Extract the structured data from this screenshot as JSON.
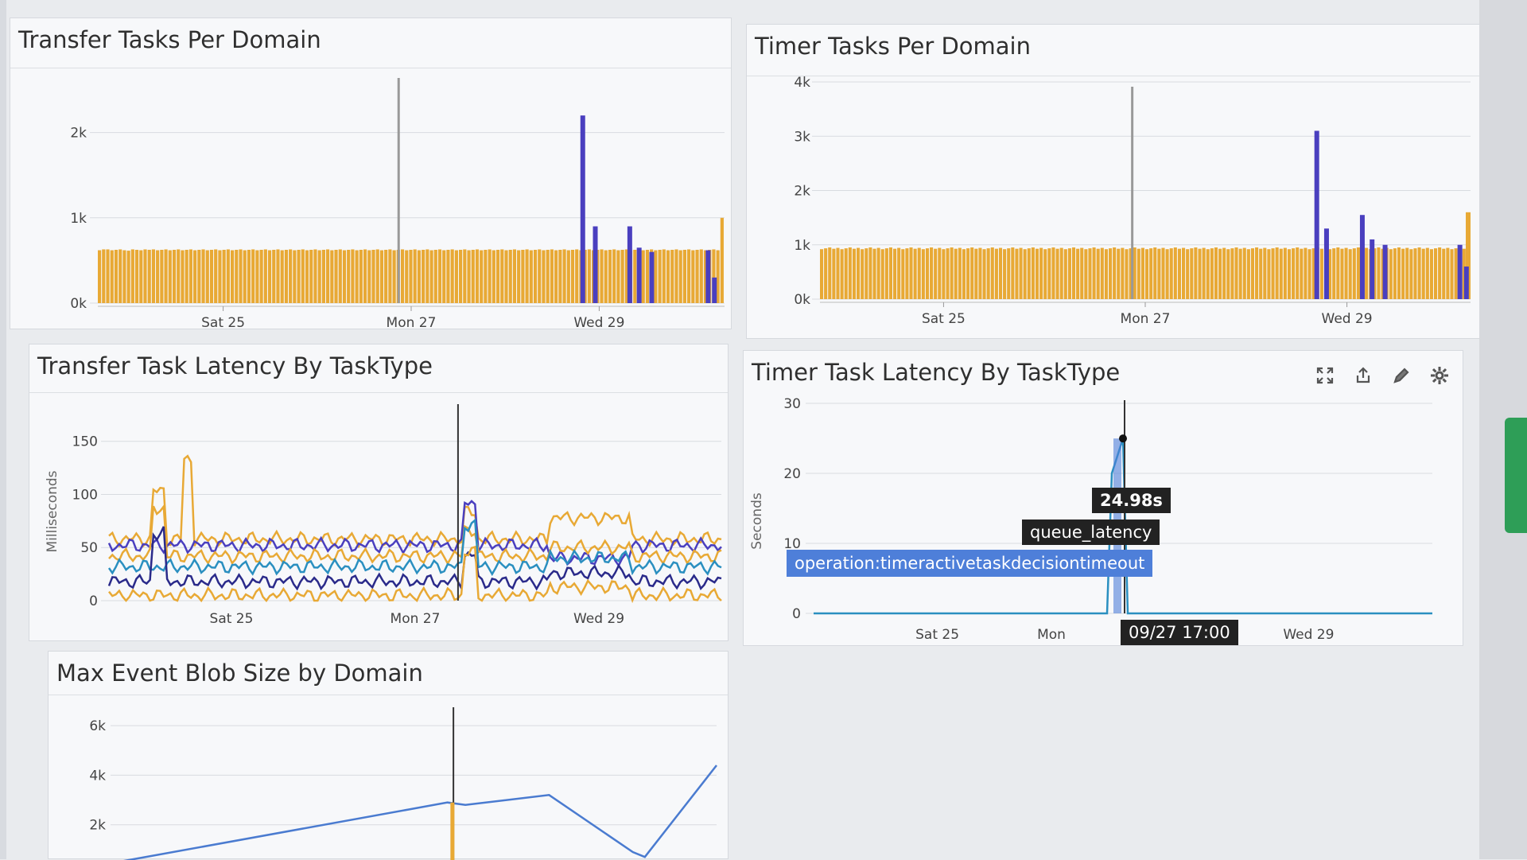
{
  "panels": {
    "transfer_tasks": {
      "title": "Transfer Tasks Per Domain"
    },
    "timer_tasks": {
      "title": "Timer Tasks Per Domain"
    },
    "transfer_latency": {
      "title": "Transfer Task Latency By TaskType",
      "ylabel": "Milliseconds"
    },
    "timer_latency": {
      "title": "Timer Task Latency By TaskType",
      "ylabel": "Seconds"
    },
    "blob_size": {
      "title": "Max Event Blob Size by Domain"
    }
  },
  "tooltip": {
    "value": "24.98s",
    "metric": "queue_latency",
    "operation": "operation:timeractivetaskdecisiontimeout",
    "time": "09/27 17:00"
  },
  "toolbar": {
    "icons": [
      "expand-icon",
      "share-icon",
      "edit-icon",
      "gear-icon"
    ]
  },
  "colors": {
    "orange": "#e8a935",
    "blue": "#4a3fbf",
    "teal": "#2a8fc0",
    "navy": "#2a2a8a",
    "tooltip_blue": "#4e7fd9"
  },
  "chart_data": [
    {
      "type": "bar",
      "title": "Transfer Tasks Per Domain",
      "x_ticks": [
        "Sat 25",
        "Mon 27",
        "Wed 29"
      ],
      "y_ticks": [
        "0k",
        "1k",
        "2k"
      ],
      "ylim": [
        0,
        2500
      ],
      "series": [
        {
          "values": [
            620,
            630,
            630,
            620,
            625,
            630,
            620,
            615,
            630,
            625,
            620,
            630,
            625,
            630,
            620,
            625,
            630,
            620,
            625,
            630,
            620,
            625,
            630,
            620,
            625,
            630,
            620,
            625,
            630,
            620,
            625,
            630,
            620,
            625,
            630,
            620,
            625,
            630,
            620,
            625,
            630,
            620,
            625,
            630,
            620,
            625,
            630,
            620,
            625,
            630,
            620,
            625,
            630,
            620,
            625,
            630,
            620,
            625,
            630,
            620,
            625,
            630,
            620,
            625,
            630,
            620,
            625,
            630,
            620,
            625,
            630,
            620,
            625,
            630,
            620,
            625,
            630,
            620,
            625,
            630,
            620,
            625,
            630,
            620,
            625,
            630,
            620,
            625,
            630,
            620,
            625,
            630,
            620,
            625,
            630,
            620,
            625,
            630,
            620,
            625,
            630,
            620,
            625,
            630,
            620,
            625,
            630,
            620,
            625,
            630,
            620,
            625,
            630,
            620,
            625,
            630,
            620,
            625,
            630,
            620,
            625,
            630,
            620,
            625,
            630,
            620,
            625,
            630,
            620,
            625,
            630,
            620,
            625,
            630,
            620,
            625,
            630,
            620,
            625,
            630,
            620,
            625,
            630,
            620,
            625,
            630,
            620,
            625,
            630,
            620,
            1000
          ]
        },
        {
          "spikes": [
            [
              0.77,
              2200
            ],
            [
              0.79,
              900
            ],
            [
              0.845,
              900
            ],
            [
              0.86,
              650
            ],
            [
              0.88,
              600
            ],
            [
              0.97,
              620
            ],
            [
              0.98,
              300
            ]
          ]
        }
      ]
    },
    {
      "type": "bar",
      "title": "Timer Tasks Per Domain",
      "x_ticks": [
        "Sat 25",
        "Mon 27",
        "Wed 29"
      ],
      "y_ticks": [
        "0k",
        "1k",
        "2k",
        "3k",
        "4k"
      ],
      "ylim": [
        0,
        4000
      ],
      "spikes": [
        [
          0.76,
          3100
        ],
        [
          0.775,
          1300
        ],
        [
          0.83,
          1550
        ],
        [
          0.845,
          1100
        ],
        [
          0.865,
          1000
        ],
        [
          0.98,
          1000
        ],
        [
          0.99,
          600
        ]
      ]
    },
    {
      "type": "line",
      "title": "Transfer Task Latency By TaskType",
      "x_ticks": [
        "Sat 25",
        "Mon 27",
        "Wed 29"
      ],
      "y_ticks": [
        "0",
        "50",
        "100",
        "150"
      ],
      "ylabel": "Milliseconds",
      "ylim": [
        0,
        170
      ],
      "series": [
        {
          "color": "#e8a935",
          "level": 58
        },
        {
          "color": "#4a3fbf",
          "level": 52
        },
        {
          "color": "#e8a935",
          "level": 42
        },
        {
          "color": "#2a8fc0",
          "level": 32
        },
        {
          "color": "#2a2a8a",
          "level": 18
        },
        {
          "color": "#e8a935",
          "level": 5
        }
      ]
    },
    {
      "type": "line",
      "title": "Timer Task Latency By TaskType",
      "x_ticks": [
        "Sat 25",
        "Mon",
        "Wed 29"
      ],
      "y_ticks": [
        "0",
        "10",
        "20",
        "30"
      ],
      "ylabel": "Seconds",
      "ylim": [
        0,
        30
      ],
      "series": [
        {
          "name": "queue_latency",
          "peak": 24.98
        }
      ]
    },
    {
      "type": "line",
      "title": "Max Event Blob Size by Domain",
      "y_ticks": [
        "2k",
        "4k",
        "6k"
      ],
      "ylim": [
        0,
        7000
      ],
      "points": [
        [
          0.0,
          500
        ],
        [
          0.55,
          2900
        ],
        [
          0.58,
          2800
        ],
        [
          0.72,
          3200
        ],
        [
          0.86,
          900
        ],
        [
          0.88,
          700
        ],
        [
          1.0,
          4400
        ]
      ]
    }
  ]
}
